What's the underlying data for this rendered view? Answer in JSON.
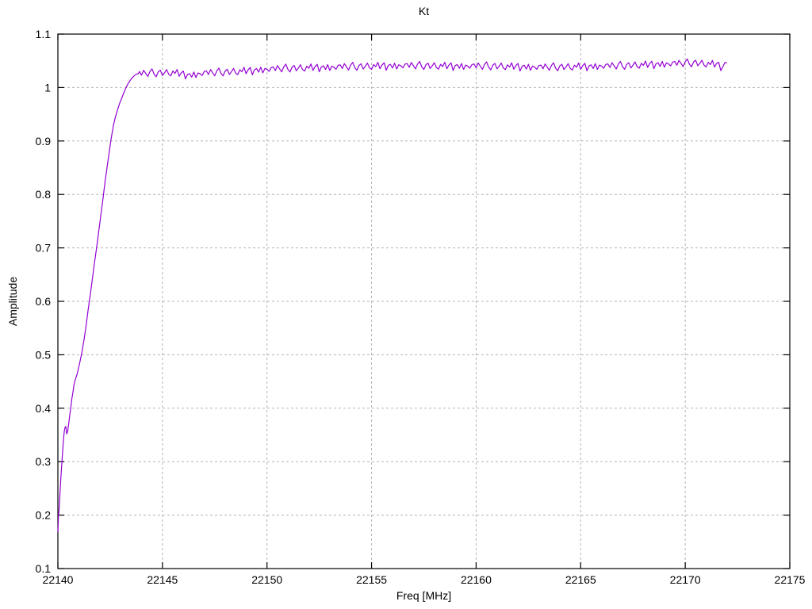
{
  "title": "Kt",
  "colors": {
    "line": "#9400d3",
    "grid": "#b3b3b3",
    "axis": "#000000",
    "background": "#ffffff"
  },
  "chart_data": {
    "type": "line",
    "title": "Kt",
    "xlabel": "Freq [MHz]",
    "ylabel": "Amplitude",
    "xlim": [
      22140,
      22175
    ],
    "ylim": [
      0.1,
      1.1
    ],
    "xticks": [
      22140,
      22145,
      22150,
      22155,
      22160,
      22165,
      22170,
      22175
    ],
    "xtick_labels": [
      "22140",
      "22145",
      "22150",
      "22155",
      "22160",
      "22165",
      "22170",
      "22175"
    ],
    "yticks": [
      0.1,
      0.2,
      0.3,
      0.4,
      0.5,
      0.6,
      0.7,
      0.8,
      0.9,
      1.0,
      1.1
    ],
    "ytick_labels": [
      "0.1",
      "0.2",
      "0.3",
      "0.4",
      "0.5",
      "0.6",
      "0.7",
      "0.8",
      "0.9",
      "1",
      "1.1"
    ],
    "grid": true,
    "legend": "none",
    "series": [
      {
        "name": "Kt",
        "color": "#9400d3",
        "rise_points": [
          [
            22140.0,
            0.168
          ],
          [
            22140.03,
            0.2
          ],
          [
            22140.06,
            0.21
          ],
          [
            22140.1,
            0.24
          ],
          [
            22140.14,
            0.268
          ],
          [
            22140.18,
            0.292
          ],
          [
            22140.22,
            0.315
          ],
          [
            22140.26,
            0.338
          ],
          [
            22140.3,
            0.355
          ],
          [
            22140.34,
            0.364
          ],
          [
            22140.38,
            0.366
          ],
          [
            22140.42,
            0.352
          ],
          [
            22140.47,
            0.357
          ],
          [
            22140.52,
            0.372
          ],
          [
            22140.57,
            0.388
          ],
          [
            22140.62,
            0.402
          ],
          [
            22140.67,
            0.418
          ],
          [
            22140.72,
            0.43
          ],
          [
            22140.77,
            0.444
          ],
          [
            22140.82,
            0.452
          ],
          [
            22140.87,
            0.458
          ],
          [
            22140.92,
            0.464
          ],
          [
            22140.97,
            0.472
          ],
          [
            22141.05,
            0.486
          ],
          [
            22141.15,
            0.505
          ],
          [
            22141.25,
            0.528
          ],
          [
            22141.35,
            0.555
          ],
          [
            22141.45,
            0.585
          ],
          [
            22141.55,
            0.613
          ],
          [
            22141.65,
            0.642
          ],
          [
            22141.75,
            0.672
          ],
          [
            22141.85,
            0.7
          ],
          [
            22141.95,
            0.73
          ],
          [
            22142.05,
            0.76
          ],
          [
            22142.15,
            0.79
          ],
          [
            22142.25,
            0.822
          ],
          [
            22142.35,
            0.85
          ],
          [
            22142.45,
            0.878
          ],
          [
            22142.55,
            0.905
          ],
          [
            22142.65,
            0.928
          ],
          [
            22142.75,
            0.945
          ],
          [
            22142.85,
            0.958
          ],
          [
            22142.95,
            0.97
          ],
          [
            22143.05,
            0.98
          ],
          [
            22143.15,
            0.99
          ],
          [
            22143.25,
            0.999
          ],
          [
            22143.35,
            1.007
          ],
          [
            22143.45,
            1.013
          ],
          [
            22143.55,
            1.018
          ],
          [
            22143.65,
            1.022
          ],
          [
            22143.75,
            1.025
          ],
          [
            22143.85,
            1.026
          ]
        ],
        "plateau": {
          "start": 22143.9,
          "end": 22172.0,
          "step": 0.1,
          "base": [
            [
              22143.9,
              1.026
            ],
            [
              22144.5,
              1.027
            ],
            [
              22145.5,
              1.028
            ],
            [
              22146.3,
              1.023
            ],
            [
              22147.0,
              1.027
            ],
            [
              22148.0,
              1.029
            ],
            [
              22149.0,
              1.031
            ],
            [
              22150.0,
              1.034
            ],
            [
              22151.0,
              1.036
            ],
            [
              22153.0,
              1.038
            ],
            [
              22155.0,
              1.04
            ],
            [
              22157.0,
              1.041
            ],
            [
              22159.0,
              1.04
            ],
            [
              22161.0,
              1.04
            ],
            [
              22163.0,
              1.038
            ],
            [
              22165.0,
              1.039
            ],
            [
              22167.0,
              1.041
            ],
            [
              22169.0,
              1.044
            ],
            [
              22170.5,
              1.046
            ],
            [
              22171.5,
              1.043
            ],
            [
              22171.8,
              1.038
            ],
            [
              22172.0,
              1.05
            ]
          ],
          "noise": [
            0.004,
            -0.003,
            0.006,
            0.0,
            -0.006,
            0.003,
            0.008,
            -0.002,
            -0.007,
            0.002,
            0.005,
            -0.005,
            0.0,
            0.006,
            -0.003,
            -0.006,
            0.003,
            -0.001,
            0.007,
            -0.005,
            0.002,
            0.006,
            -0.008,
            0.001,
            0.003,
            -0.004,
            0.005,
            -0.006,
            0.002,
            0.0,
            -0.004,
            0.003
          ]
        }
      }
    ]
  }
}
